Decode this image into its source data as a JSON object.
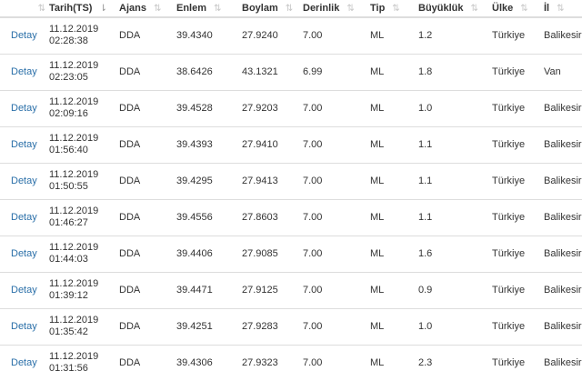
{
  "table": {
    "headers": [
      {
        "key": "detail",
        "label": "",
        "sort": "none"
      },
      {
        "key": "date",
        "label": "Tarih(TS)",
        "sort": "desc"
      },
      {
        "key": "agency",
        "label": "Ajans",
        "sort": "none"
      },
      {
        "key": "lat",
        "label": "Enlem",
        "sort": "none"
      },
      {
        "key": "lon",
        "label": "Boylam",
        "sort": "none"
      },
      {
        "key": "depth",
        "label": "Derinlik",
        "sort": "none"
      },
      {
        "key": "type",
        "label": "Tip",
        "sort": "none"
      },
      {
        "key": "mag",
        "label": "Büyüklük",
        "sort": "none"
      },
      {
        "key": "country",
        "label": "Ülke",
        "sort": "none"
      },
      {
        "key": "city",
        "label": "İl",
        "sort": "none"
      }
    ],
    "sort_icon_default": "⇅",
    "sort_icon_desc": "⇂",
    "rows": [
      {
        "detail": "Detay",
        "date": "11.12.2019",
        "time": "02:28:38",
        "agency": "DDA",
        "lat": "39.4340",
        "lon": "27.9240",
        "depth": "7.00",
        "type": "ML",
        "mag": "1.2",
        "country": "Türkiye",
        "city": "Balikesir"
      },
      {
        "detail": "Detay",
        "date": "11.12.2019",
        "time": "02:23:05",
        "agency": "DDA",
        "lat": "38.6426",
        "lon": "43.1321",
        "depth": "6.99",
        "type": "ML",
        "mag": "1.8",
        "country": "Türkiye",
        "city": "Van"
      },
      {
        "detail": "Detay",
        "date": "11.12.2019",
        "time": "02:09:16",
        "agency": "DDA",
        "lat": "39.4528",
        "lon": "27.9203",
        "depth": "7.00",
        "type": "ML",
        "mag": "1.0",
        "country": "Türkiye",
        "city": "Balikesir"
      },
      {
        "detail": "Detay",
        "date": "11.12.2019",
        "time": "01:56:40",
        "agency": "DDA",
        "lat": "39.4393",
        "lon": "27.9410",
        "depth": "7.00",
        "type": "ML",
        "mag": "1.1",
        "country": "Türkiye",
        "city": "Balikesir"
      },
      {
        "detail": "Detay",
        "date": "11.12.2019",
        "time": "01:50:55",
        "agency": "DDA",
        "lat": "39.4295",
        "lon": "27.9413",
        "depth": "7.00",
        "type": "ML",
        "mag": "1.1",
        "country": "Türkiye",
        "city": "Balikesir"
      },
      {
        "detail": "Detay",
        "date": "11.12.2019",
        "time": "01:46:27",
        "agency": "DDA",
        "lat": "39.4556",
        "lon": "27.8603",
        "depth": "7.00",
        "type": "ML",
        "mag": "1.1",
        "country": "Türkiye",
        "city": "Balikesir"
      },
      {
        "detail": "Detay",
        "date": "11.12.2019",
        "time": "01:44:03",
        "agency": "DDA",
        "lat": "39.4406",
        "lon": "27.9085",
        "depth": "7.00",
        "type": "ML",
        "mag": "1.6",
        "country": "Türkiye",
        "city": "Balikesir"
      },
      {
        "detail": "Detay",
        "date": "11.12.2019",
        "time": "01:39:12",
        "agency": "DDA",
        "lat": "39.4471",
        "lon": "27.9125",
        "depth": "7.00",
        "type": "ML",
        "mag": "0.9",
        "country": "Türkiye",
        "city": "Balikesir"
      },
      {
        "detail": "Detay",
        "date": "11.12.2019",
        "time": "01:35:42",
        "agency": "DDA",
        "lat": "39.4251",
        "lon": "27.9283",
        "depth": "7.00",
        "type": "ML",
        "mag": "1.0",
        "country": "Türkiye",
        "city": "Balikesir"
      },
      {
        "detail": "Detay",
        "date": "11.12.2019",
        "time": "01:31:56",
        "agency": "DDA",
        "lat": "39.4306",
        "lon": "27.9323",
        "depth": "7.00",
        "type": "ML",
        "mag": "2.3",
        "country": "Türkiye",
        "city": "Balikesir"
      }
    ]
  },
  "colors": {
    "link": "#2a6fa8",
    "border": "#dddddd",
    "text": "#333333"
  }
}
